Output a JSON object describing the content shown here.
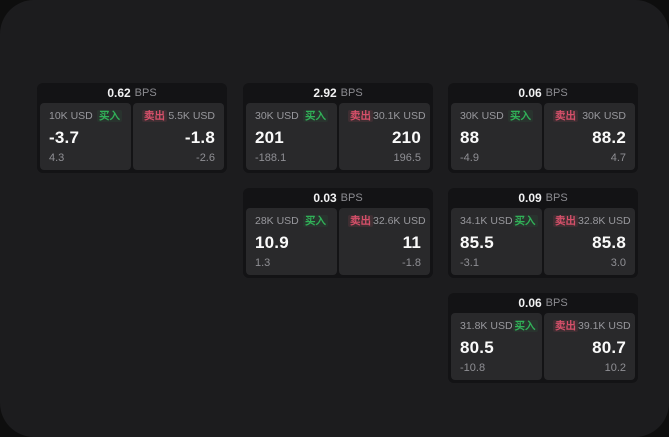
{
  "labels": {
    "bps_unit": "BPS",
    "buy": "买入",
    "sell": "卖出"
  },
  "colors": {
    "surface": "#1c1c1e",
    "background": "#0e0e0e",
    "card_header": "#131315",
    "panel": "#29292b",
    "buy_green": "#31b158",
    "sell_red": "#d6506a",
    "text_primary": "#fafafa",
    "text_secondary": "#8f8f94"
  },
  "cards": [
    {
      "bps": "0.62",
      "buy": {
        "size": "10K USD",
        "price": "-3.7",
        "change": "4.3"
      },
      "sell": {
        "size": "5.5K USD",
        "price": "-1.8",
        "change": "-2.6"
      }
    },
    {
      "bps": "2.92",
      "buy": {
        "size": "30K USD",
        "price": "201",
        "change": "-188.1"
      },
      "sell": {
        "size": "30.1K USD",
        "price": "210",
        "change": "196.5"
      }
    },
    {
      "bps": "0.06",
      "buy": {
        "size": "30K USD",
        "price": "88",
        "change": "-4.9"
      },
      "sell": {
        "size": "30K USD",
        "price": "88.2",
        "change": "4.7"
      }
    },
    {
      "bps": "0.03",
      "buy": {
        "size": "28K USD",
        "price": "10.9",
        "change": "1.3"
      },
      "sell": {
        "size": "32.6K USD",
        "price": "11",
        "change": "-1.8"
      }
    },
    {
      "bps": "0.09",
      "buy": {
        "size": "34.1K USD",
        "price": "85.5",
        "change": "-3.1"
      },
      "sell": {
        "size": "32.8K USD",
        "price": "85.8",
        "change": "3.0"
      }
    },
    {
      "bps": "0.06",
      "buy": {
        "size": "31.8K USD",
        "price": "80.5",
        "change": "-10.8"
      },
      "sell": {
        "size": "39.1K USD",
        "price": "80.7",
        "change": "10.2"
      }
    }
  ]
}
